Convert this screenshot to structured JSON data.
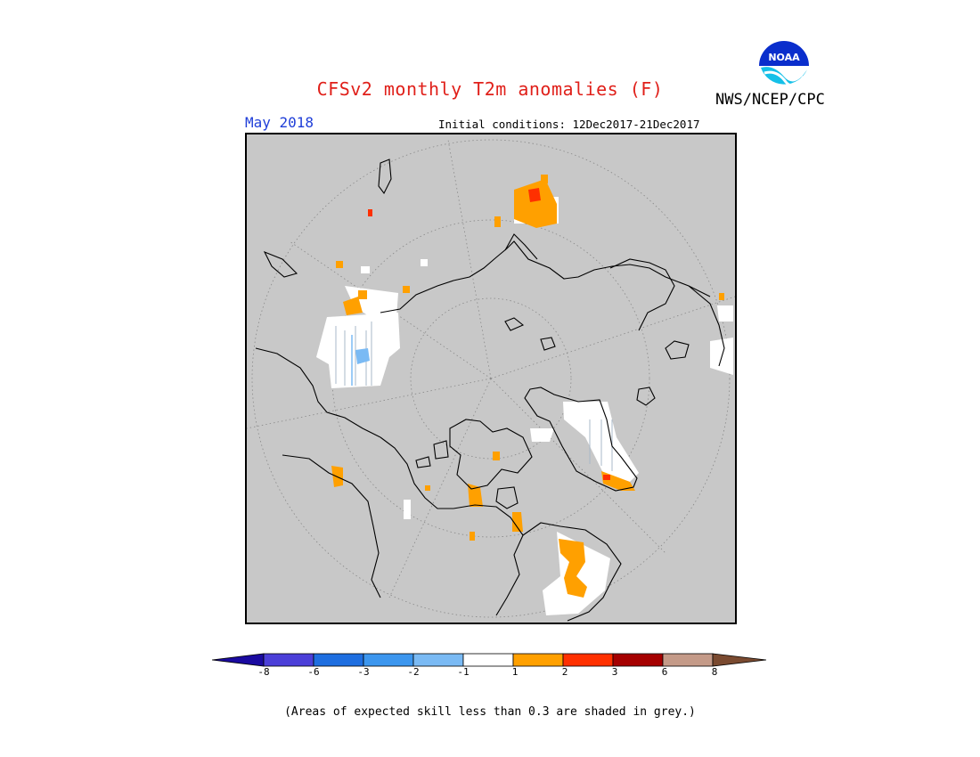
{
  "header": {
    "title": "CFSv2 monthly T2m anomalies (F)",
    "agency": "NWS/NCEP/CPC",
    "month": "May 2018",
    "initial_conditions": "Initial conditions: 12Dec2017-21Dec2017",
    "logo_text": "NOAA"
  },
  "legend": {
    "ticks": [
      "-8",
      "-6",
      "-3",
      "-2",
      "-1",
      "1",
      "2",
      "3",
      "6",
      "8"
    ],
    "colors": [
      "#1a0aa0",
      "#4b3fd8",
      "#1e6ee0",
      "#3c96ee",
      "#7abaf4",
      "#ffffff",
      "#ffa000",
      "#ff3000",
      "#a50000",
      "#c49a88",
      "#7a4a30"
    ],
    "note": "(Areas of expected skill less than 0.3 are shaded in grey.)"
  },
  "colors": {
    "title": "#e0201a",
    "month": "#1f3ed8",
    "no_skill_grey": "#c8c8c8",
    "warm_anomaly": "#ffa000",
    "strong_warm_anomaly": "#ff3000",
    "cold_anomaly": "#7abaf4"
  }
}
